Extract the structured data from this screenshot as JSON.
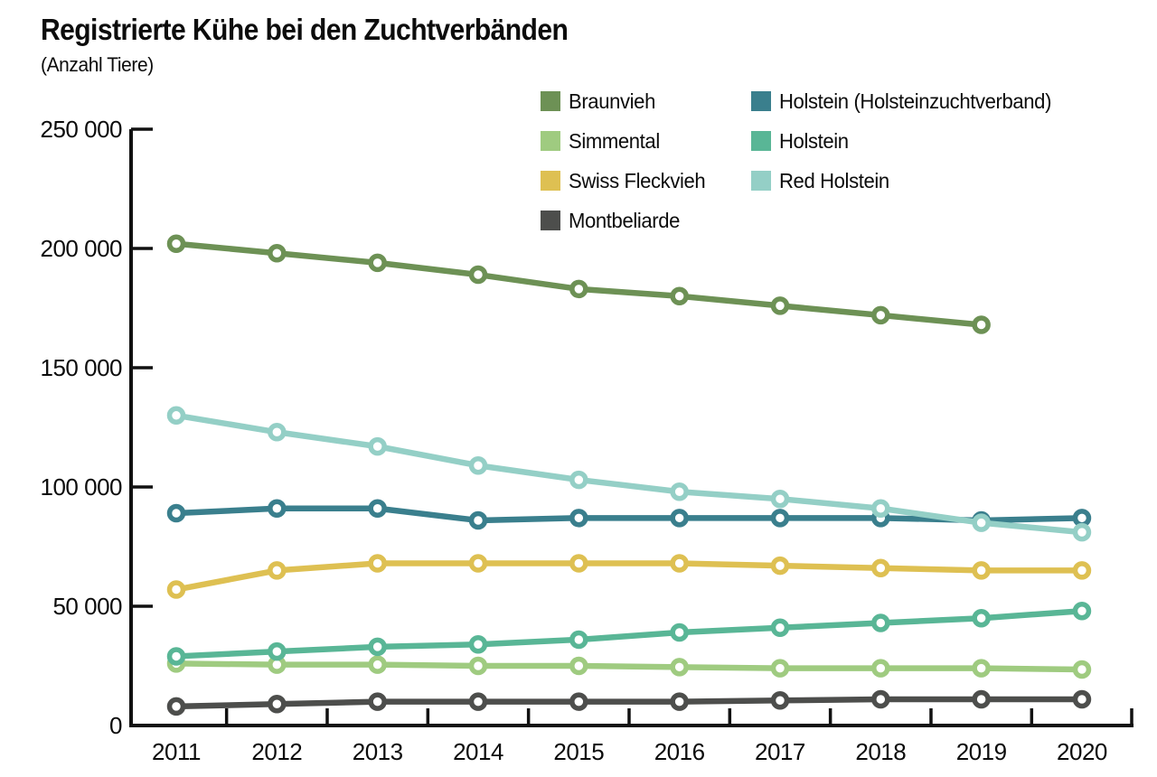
{
  "header": {
    "title": "Registrierte Kühe bei den Zuchtverbänden",
    "subtitle": "(Anzahl Tiere)"
  },
  "colors": {
    "background": "#ffffff",
    "axis": "#111111",
    "text": "#0c0c0c"
  },
  "chart_data": {
    "type": "line",
    "title": "Registrierte Kühe bei den Zuchtverbänden",
    "subtitle": "(Anzahl Tiere)",
    "xlabel": "",
    "ylabel": "Anzahl Tiere",
    "x": [
      2011,
      2012,
      2013,
      2014,
      2015,
      2016,
      2017,
      2018,
      2019,
      2020
    ],
    "ylim": [
      0,
      250000
    ],
    "yticks": [
      0,
      50000,
      100000,
      150000,
      200000,
      250000
    ],
    "grid": false,
    "legend_position": "top-right-two-columns",
    "marker": "open-circle-white-fill",
    "series": [
      {
        "name": "Braunvieh",
        "color": "#6d9155",
        "values": [
          202000,
          198000,
          194000,
          189000,
          183000,
          180000,
          176000,
          172000,
          168000,
          null
        ]
      },
      {
        "name": "Simmental",
        "color": "#9fcb80",
        "values": [
          26000,
          25500,
          25500,
          25000,
          25000,
          24500,
          24000,
          24000,
          24000,
          23500
        ]
      },
      {
        "name": "Swiss Fleckvieh",
        "color": "#dec052",
        "values": [
          57000,
          65000,
          68000,
          68000,
          68000,
          68000,
          67000,
          66000,
          65000,
          65000
        ]
      },
      {
        "name": "Montbeliarde",
        "color": "#4d4e4c",
        "values": [
          8000,
          9000,
          10000,
          10000,
          10000,
          10000,
          10500,
          11000,
          11000,
          11000
        ]
      },
      {
        "name": "Holstein (Holsteinzuchtverband)",
        "color": "#3a7f8d",
        "values": [
          89000,
          91000,
          91000,
          86000,
          87000,
          87000,
          87000,
          87000,
          86000,
          87000
        ]
      },
      {
        "name": "Holstein",
        "color": "#59b696",
        "values": [
          29000,
          31000,
          33000,
          34000,
          36000,
          39000,
          41000,
          43000,
          45000,
          48000
        ]
      },
      {
        "name": "Red Holstein",
        "color": "#94cfc6",
        "values": [
          130000,
          123000,
          117000,
          109000,
          103000,
          98000,
          95000,
          91000,
          85000,
          81000
        ]
      }
    ],
    "legend_order": [
      "Braunvieh",
      "Holstein (Holsteinzuchtverband)",
      "Simmental",
      "Holstein",
      "Swiss Fleckvieh",
      "Red Holstein",
      "Montbeliarde"
    ]
  }
}
